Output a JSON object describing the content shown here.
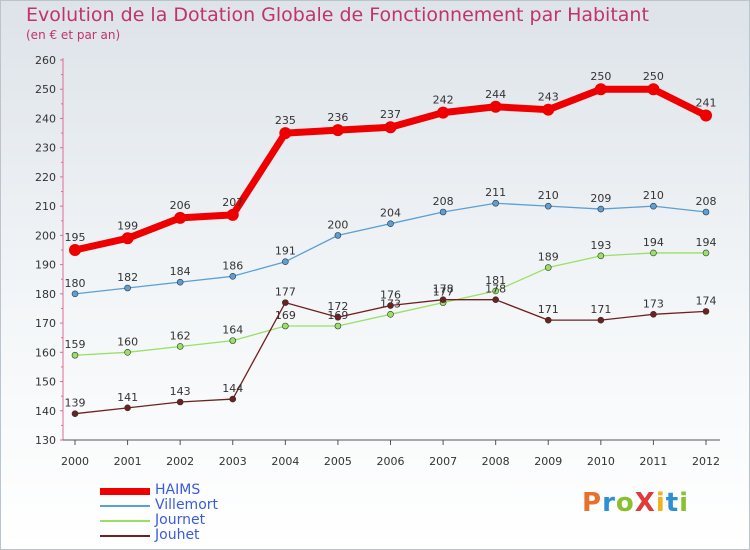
{
  "header": {
    "title": "Evolution de la Dotation Globale de Fonctionnement par Habitant",
    "subtitle": "(en € et par an)"
  },
  "logo": {
    "text": "ProXiti",
    "colors": [
      "#e8702a",
      "#2e8fd3",
      "#8bbf2e",
      "#e03a3a",
      "#f2b21a",
      "#2e8fd3",
      "#8bbf2e"
    ]
  },
  "chart_data": {
    "type": "line",
    "title": "Evolution de la Dotation Globale de Fonctionnement par Habitant",
    "subtitle": "(en € et par an)",
    "xlabel": "",
    "ylabel": "",
    "ylim": [
      130,
      260
    ],
    "yticks": [
      130,
      140,
      150,
      160,
      170,
      180,
      190,
      200,
      210,
      220,
      230,
      240,
      250,
      260
    ],
    "grid": false,
    "legend_position": "bottom-left",
    "categories": [
      "2000",
      "2001",
      "2002",
      "2003",
      "2004",
      "2005",
      "2006",
      "2007",
      "2008",
      "2009",
      "2010",
      "2011",
      "2012"
    ],
    "series": [
      {
        "name": "HAIMS",
        "color": "#ee0000",
        "emphasis": true,
        "values": [
          195,
          199,
          206,
          207,
          235,
          236,
          237,
          242,
          244,
          243,
          250,
          250,
          241
        ]
      },
      {
        "name": "Villemort",
        "color": "#5b9fd6",
        "emphasis": false,
        "values": [
          180,
          182,
          184,
          186,
          191,
          200,
          204,
          208,
          211,
          210,
          209,
          210,
          208
        ]
      },
      {
        "name": "Journet",
        "color": "#99e066",
        "emphasis": false,
        "values": [
          159,
          160,
          162,
          164,
          169,
          169,
          173,
          177,
          181,
          189,
          193,
          194,
          194
        ]
      },
      {
        "name": "Jouhet",
        "color": "#702020",
        "emphasis": false,
        "values": [
          139,
          141,
          143,
          144,
          177,
          172,
          176,
          178,
          178,
          171,
          171,
          173,
          174
        ]
      }
    ]
  }
}
